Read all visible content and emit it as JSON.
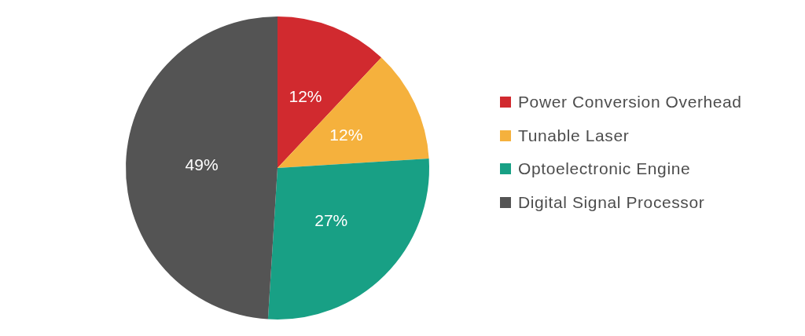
{
  "chart_data": {
    "type": "pie",
    "categories": [
      "Power Conversion Overhead",
      "Tunable Laser",
      "Optoelectronic Engine",
      "Digital Signal Processor"
    ],
    "values": [
      12,
      12,
      27,
      49
    ],
    "value_labels": [
      "12%",
      "12%",
      "27%",
      "49%"
    ],
    "colors": [
      "#d12a2f",
      "#f5b13d",
      "#18a085",
      "#545454"
    ],
    "data_labels": true,
    "legend": "right"
  }
}
